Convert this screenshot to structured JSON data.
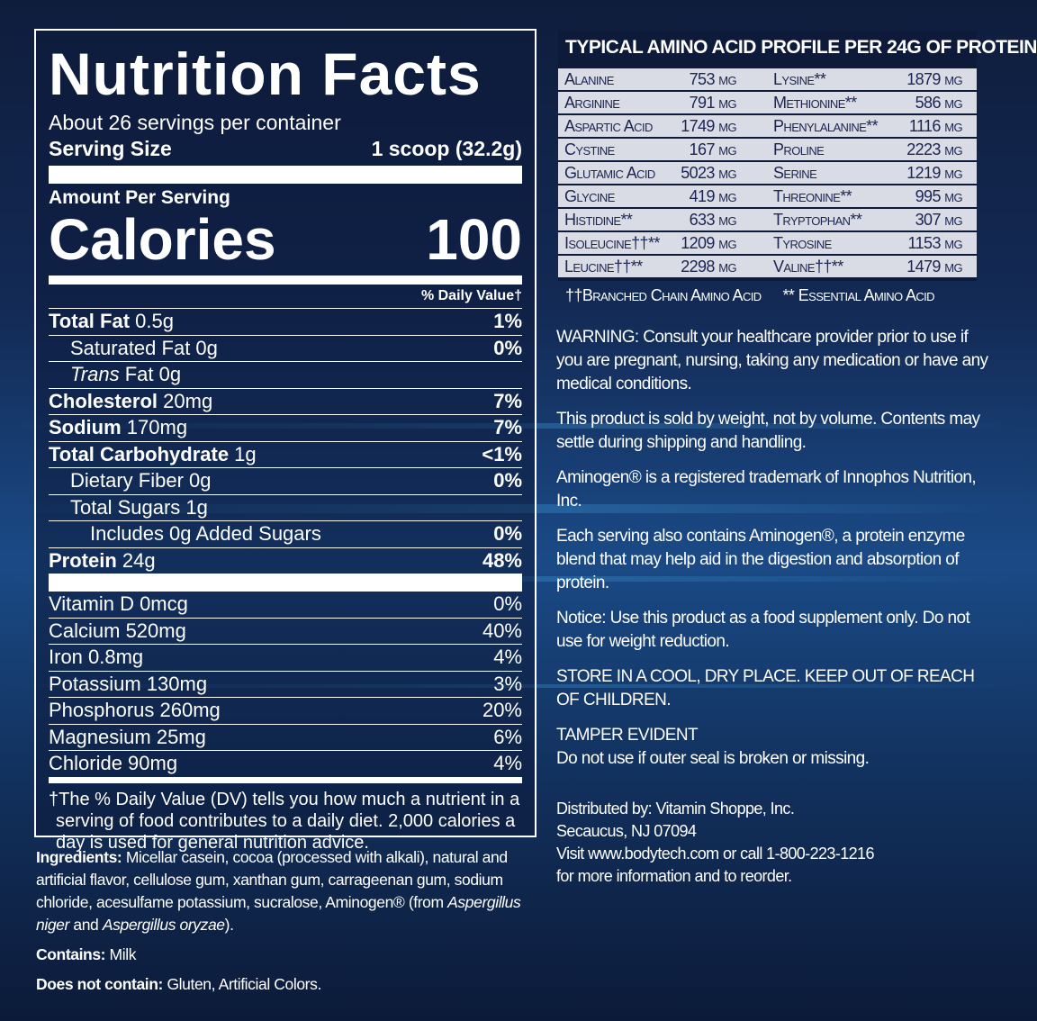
{
  "nutrition": {
    "title": "Nutrition Facts",
    "servings": "About 26 servings per container",
    "serving_size_label": "Serving Size",
    "serving_size_value": "1 scoop (32.2g)",
    "amount_per_serving": "Amount Per Serving",
    "calories_label": "Calories",
    "calories_value": "100",
    "dv_header": "% Daily Value†",
    "nutrients": [
      {
        "bold": "Total Fat",
        "amt": " 0.5g",
        "dv": "1%",
        "indent": 0
      },
      {
        "bold": "",
        "amt": "Saturated Fat 0g",
        "dv": "0%",
        "indent": 1
      },
      {
        "bold": "",
        "italic": "Trans",
        "amt": " Fat 0g",
        "dv": "",
        "indent": 1
      },
      {
        "bold": "Cholesterol",
        "amt": " 20mg",
        "dv": "7%",
        "indent": 0
      },
      {
        "bold": "Sodium",
        "amt": " 170mg",
        "dv": "7%",
        "indent": 0
      },
      {
        "bold": "Total Carbohydrate",
        "amt": " 1g",
        "dv": "<1%",
        "indent": 0
      },
      {
        "bold": "",
        "amt": "Dietary Fiber 0g",
        "dv": "0%",
        "indent": 1
      },
      {
        "bold": "",
        "amt": "Total Sugars 1g",
        "dv": "",
        "indent": 1
      },
      {
        "bold": "",
        "amt": "Includes 0g Added Sugars",
        "dv": "0%",
        "indent": 2
      },
      {
        "bold": "Protein",
        "amt": " 24g",
        "dv": "48%",
        "indent": 0
      }
    ],
    "vitamins": [
      {
        "name": "Vitamin D 0mcg",
        "dv": "0%"
      },
      {
        "name": "Calcium 520mg",
        "dv": "40%"
      },
      {
        "name": "Iron 0.8mg",
        "dv": "4%"
      },
      {
        "name": "Potassium 130mg",
        "dv": "3%"
      },
      {
        "name": "Phosphorus 260mg",
        "dv": "20%"
      },
      {
        "name": "Magnesium 25mg",
        "dv": "6%"
      },
      {
        "name": "Chloride 90mg",
        "dv": "4%"
      }
    ],
    "footnote": "†The % Daily Value (DV) tells you how much a nutrient in a serving of food contributes to a daily diet. 2,000 calories a day is used for general nutrition advice."
  },
  "ingredients": {
    "label": "Ingredients:",
    "text1": " Micellar casein, cocoa (processed with alkali), natural and artificial flavor, cellulose gum, xanthan gum, carrageenan gum, sodium chloride, acesulfame potassium, sucralose, Aminogen® (from ",
    "italic1": "Aspergillus niger",
    "text2": " and ",
    "italic2": "Aspergillus oryzae",
    "text3": ").",
    "contains_label": "Contains:",
    "contains": " Milk",
    "not_contain_label": "Does not contain:",
    "not_contain": " Gluten, Artificial Colors."
  },
  "amino": {
    "title": "TYPICAL AMINO ACID PROFILE PER 24G OF PROTEIN",
    "rows": [
      [
        "Alanine",
        "753 mg",
        "Lysine**",
        "1879 mg"
      ],
      [
        "Arginine",
        "791 mg",
        "Methionine**",
        "586 mg"
      ],
      [
        "Aspartic Acid",
        "1749 mg",
        "Phenylalanine**",
        "1116 mg"
      ],
      [
        "Cystine",
        "167 mg",
        "Proline",
        "2223 mg"
      ],
      [
        "Glutamic Acid",
        "5023 mg",
        "Serine",
        "1219 mg"
      ],
      [
        "Glycine",
        "419 mg",
        "Threonine**",
        "995 mg"
      ],
      [
        "Histidine**",
        "633 mg",
        "Tryptophan**",
        "307 mg"
      ],
      [
        "Isoleucine††**",
        "1209 mg",
        "Tyrosine",
        "1153 mg"
      ],
      [
        "Leucine††**",
        "2298 mg",
        "Valine††**",
        "1479 mg"
      ]
    ],
    "legend_bcaa": "††Branched Chain Amino Acid",
    "legend_eaa": "** Essential Amino Acid"
  },
  "notes": [
    "WARNING: Consult your healthcare provider prior to use if you are pregnant, nursing, taking any medication or have any medical conditions.",
    "This product is sold by weight, not by volume. Contents may settle during shipping and handling.",
    "Aminogen® is a registered trademark of Innophos Nutrition, Inc.",
    "Each serving also contains Aminogen®, a protein enzyme blend that may help aid in the digestion and absorption of protein.",
    "Notice: Use this product as a food supplement only. Do not use for weight reduction.",
    "STORE IN A COOL, DRY PLACE. KEEP OUT OF REACH OF CHILDREN.",
    "TAMPER EVIDENT\nDo not use if outer seal is broken or missing."
  ],
  "distributor": [
    "Distributed by: Vitamin Shoppe, Inc.",
    "Secaucus, NJ 07094",
    "Visit www.bodytech.com or call 1-800-223-1216",
    "for more information and to reorder."
  ]
}
